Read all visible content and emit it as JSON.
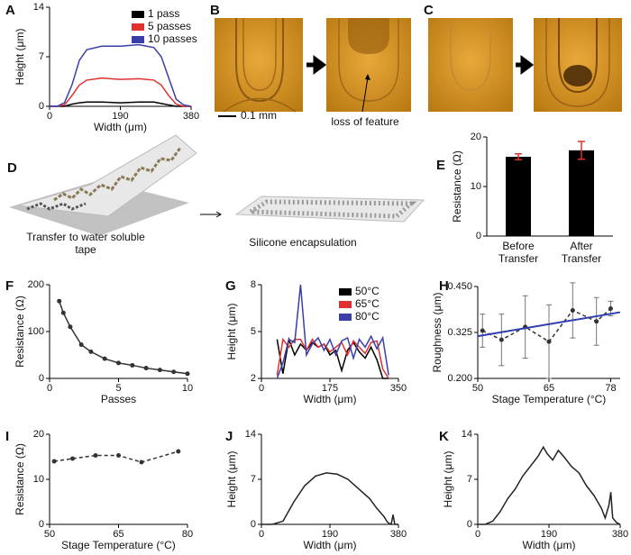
{
  "chart_data": [
    {
      "type": "line",
      "panel": "A",
      "xlabel": "Width (μm)",
      "ylabel": "Height (μm)",
      "xlim": [
        0,
        380
      ],
      "xticks": [
        0,
        190,
        380
      ],
      "ylim": [
        0,
        14
      ],
      "yticks": [
        0,
        7,
        14
      ],
      "legend": "top-right",
      "x": [
        0,
        20,
        40,
        60,
        80,
        100,
        140,
        190,
        240,
        280,
        300,
        320,
        340,
        360,
        380
      ],
      "series": [
        {
          "name": "1 pass",
          "color": "#000000",
          "values": [
            0,
            0,
            0,
            0.3,
            0.5,
            0.6,
            0.6,
            0.5,
            0.6,
            0.6,
            0.4,
            0.2,
            0,
            0,
            0
          ]
        },
        {
          "name": "5 passes",
          "color": "#e03030",
          "values": [
            0,
            0,
            0.2,
            1.5,
            3,
            3.7,
            4,
            3.8,
            3.9,
            3.7,
            3,
            1.5,
            0.3,
            0,
            0
          ]
        },
        {
          "name": "10 passes",
          "color": "#3a3fa8",
          "values": [
            0,
            0,
            0.5,
            3,
            6.5,
            8,
            8.5,
            8.5,
            8.7,
            8.3,
            7,
            4,
            1,
            0.2,
            0
          ]
        }
      ]
    },
    {
      "type": "bar",
      "panel": "E",
      "ylabel": "Resistance (Ω)",
      "categories": [
        "Before Transfer",
        "After Transfer"
      ],
      "ylim": [
        0,
        20
      ],
      "yticks": [
        0,
        10,
        20
      ],
      "series": [
        {
          "color": "#000000",
          "error_color": "#e03030",
          "values": [
            16,
            17.3
          ],
          "error": [
            0.6,
            1.8
          ]
        }
      ]
    },
    {
      "type": "line",
      "panel": "F",
      "xlabel": "Passes",
      "ylabel": "Resistance (Ω)",
      "xlim": [
        0,
        10
      ],
      "xticks": [
        0,
        5,
        10
      ],
      "ylim": [
        0,
        200
      ],
      "yticks": [
        0,
        100,
        200
      ],
      "x": [
        0.7,
        1,
        1.5,
        2.3,
        3,
        4,
        5,
        6,
        7,
        8,
        9,
        10
      ],
      "series": [
        {
          "color": "#333333",
          "markers": true,
          "values": [
            165,
            140,
            110,
            72,
            57,
            42,
            33,
            28,
            22,
            18,
            14,
            10
          ]
        }
      ]
    },
    {
      "type": "line",
      "panel": "G",
      "xlabel": "Width (μm)",
      "ylabel": "Height (μm)",
      "xlim": [
        0,
        350
      ],
      "xticks": [
        0,
        175,
        350
      ],
      "ylim": [
        2,
        8
      ],
      "yticks": [
        2,
        5,
        8
      ],
      "legend": "top-right",
      "x": [
        40,
        55,
        70,
        85,
        100,
        115,
        130,
        145,
        160,
        175,
        190,
        205,
        220,
        235,
        250,
        265,
        280,
        295,
        310,
        325
      ],
      "series": [
        {
          "name": "50°C",
          "color": "#000000",
          "values": [
            4.5,
            2.3,
            4.5,
            3.5,
            4.2,
            3.8,
            4.3,
            4,
            4.2,
            3.5,
            3.8,
            2.5,
            3.8,
            4.3,
            3.7,
            3.3,
            4,
            3.2,
            2,
            2
          ]
        },
        {
          "name": "65°C",
          "color": "#e03030",
          "values": [
            2.2,
            4.5,
            4,
            4.5,
            4.5,
            3.8,
            4.5,
            4,
            4.2,
            3.7,
            4,
            4.3,
            3.5,
            4.4,
            4,
            3.6,
            4.3,
            4.4,
            2.6,
            2
          ]
        },
        {
          "name": "80°C",
          "color": "#3a3fa8",
          "values": [
            2,
            3,
            4.5,
            4.3,
            8,
            3.5,
            4.2,
            4.6,
            3.8,
            4.5,
            3.5,
            4.4,
            4.6,
            3.3,
            4.5,
            4,
            4.7,
            3.9,
            4.6,
            2.2
          ]
        }
      ]
    },
    {
      "type": "scatter",
      "panel": "H",
      "xlabel": "Stage Temperature (°C)",
      "ylabel": "Roughness (μm)",
      "xlim": [
        50,
        80
      ],
      "xticks": [
        50,
        65,
        78
      ],
      "ylim": [
        0.2,
        0.45
      ],
      "yticks": [
        {
          "value": 0.2,
          "label": "0.200"
        },
        0.325,
        {
          "value": 0.45,
          "label": "0.450"
        }
      ],
      "x": [
        51,
        55,
        60,
        65,
        70,
        75,
        78
      ],
      "series": [
        {
          "color": "#333333",
          "error_color": "#777777",
          "line_style": "dashed",
          "values": [
            0.33,
            0.305,
            0.34,
            0.3,
            0.385,
            0.355,
            0.39
          ],
          "error": [
            0.045,
            0.07,
            0.085,
            0.1,
            0.075,
            0.065,
            0.02
          ]
        }
      ],
      "fit": {
        "color": "#2f3fb0",
        "x": [
          50,
          80
        ],
        "y": [
          0.315,
          0.38
        ]
      }
    },
    {
      "type": "line",
      "panel": "I",
      "xlabel": "Stage Temperature (°C)",
      "ylabel": "Resistance (Ω)",
      "xlim": [
        50,
        80
      ],
      "xticks": [
        50,
        65,
        80
      ],
      "ylim": [
        0,
        20
      ],
      "yticks": [
        0,
        10,
        20
      ],
      "x": [
        51,
        55,
        60,
        65,
        70,
        78
      ],
      "series": [
        {
          "color": "#333333",
          "markers": true,
          "line_style": "dashed",
          "values": [
            14,
            14.6,
            15.3,
            15.3,
            13.8,
            16.2
          ]
        }
      ]
    },
    {
      "type": "line",
      "panel": "J",
      "xlabel": "Width (μm)",
      "ylabel": "Height (μm)",
      "xlim": [
        0,
        380
      ],
      "xticks": [
        0,
        190,
        380
      ],
      "ylim": [
        0,
        14
      ],
      "yticks": [
        0,
        7,
        14
      ],
      "x": [
        0,
        30,
        60,
        90,
        120,
        150,
        180,
        210,
        240,
        270,
        300,
        320,
        340,
        350,
        360,
        365,
        370,
        380
      ],
      "series": [
        {
          "color": "#222222",
          "values": [
            0,
            0,
            0.5,
            3.5,
            6,
            7.5,
            8,
            7.8,
            7,
            5.5,
            4,
            2.5,
            1.2,
            0.3,
            0,
            1.5,
            0,
            0
          ]
        }
      ]
    },
    {
      "type": "line",
      "panel": "K",
      "xlabel": "Width (μm)",
      "ylabel": "Height (μm)",
      "xlim": [
        0,
        380
      ],
      "xticks": [
        0,
        190,
        380
      ],
      "ylim": [
        0,
        14
      ],
      "yticks": [
        0,
        7,
        14
      ],
      "x": [
        0,
        20,
        40,
        60,
        80,
        100,
        120,
        140,
        160,
        175,
        185,
        200,
        215,
        230,
        250,
        270,
        290,
        310,
        330,
        340,
        350,
        355,
        360,
        370,
        380
      ],
      "series": [
        {
          "color": "#222222",
          "values": [
            0,
            0,
            0.5,
            2,
            4,
            5.5,
            7.5,
            9,
            10.5,
            12,
            11,
            10,
            11.5,
            10.5,
            9,
            8,
            6,
            4.5,
            2.5,
            1,
            3,
            5,
            1,
            0.3,
            0
          ]
        }
      ]
    }
  ],
  "figure": {
    "panel_b": {
      "label": "B",
      "scale": "0.1 mm",
      "annotation": "loss of feature"
    },
    "panel_c": {
      "label": "C"
    },
    "panel_d": {
      "label": "D",
      "left_caption": "Transfer to water soluble tape",
      "right_caption": "Silicone encapsulation"
    }
  }
}
